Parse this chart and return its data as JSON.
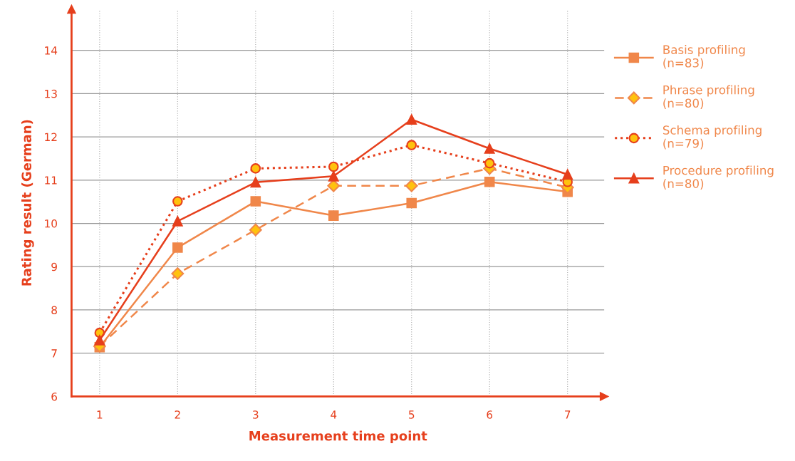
{
  "chart_data": {
    "type": "line",
    "xlabel": "Measurement time point",
    "ylabel": "Rating result (German)",
    "x": [
      1,
      2,
      3,
      4,
      5,
      6,
      7
    ],
    "xlim": [
      0.64,
      7.47
    ],
    "xticks": [
      1,
      2,
      3,
      4,
      5,
      6,
      7
    ],
    "ylim": [
      6,
      14.95
    ],
    "yticks": [
      6,
      7,
      8,
      9,
      10,
      11,
      12,
      13,
      14
    ],
    "grid": true,
    "legend": "right",
    "series": [
      {
        "name": "Basis profiling\n(n=83)",
        "color": "#f0874a",
        "marker": "square",
        "line_style": "solid",
        "values": [
          7.14,
          9.44,
          10.51,
          10.18,
          10.47,
          10.96,
          10.73
        ]
      },
      {
        "name": "Phrase profiling\n(n=80)",
        "color": "#f0874a",
        "marker": "diamond",
        "line_style": "dashed",
        "values": [
          7.16,
          8.84,
          9.85,
          10.87,
          10.87,
          11.27,
          10.83
        ]
      },
      {
        "name": "Schema profiling\n(n=79)",
        "color": "#e63f1c",
        "marker": "circle",
        "line_style": "dotted",
        "values": [
          7.47,
          10.51,
          11.27,
          11.31,
          11.81,
          11.39,
          10.96
        ]
      },
      {
        "name": "Procedure profiling\n(n=80)",
        "color": "#e63f1c",
        "marker": "triangle",
        "line_style": "solid",
        "values": [
          7.3,
          10.05,
          10.95,
          11.09,
          12.4,
          11.73,
          11.13
        ]
      }
    ]
  }
}
